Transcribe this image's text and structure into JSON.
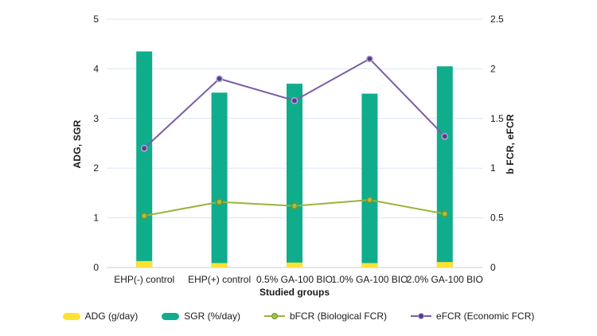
{
  "chart_data": {
    "type": "combo",
    "title": "",
    "categories": [
      "EHP(-) control",
      "EHP(+) control",
      "0.5% GA-100 BIO",
      "1.0% GA-100 BIO",
      "2.0% GA-100 BIO"
    ],
    "series": [
      {
        "name": "ADG (g/day)",
        "type": "bar",
        "axis": "left",
        "color": "#fde233",
        "values": [
          0.13,
          0.09,
          0.1,
          0.09,
          0.11
        ]
      },
      {
        "name": "SGR (%/day)",
        "type": "bar",
        "axis": "left",
        "color": "#10ad8d",
        "values": [
          4.35,
          3.52,
          3.7,
          3.5,
          4.05
        ]
      },
      {
        "name": "bFCR (Biological FCR)",
        "type": "line",
        "axis": "right",
        "color": "#9ab43c",
        "marker_fill": "#a6bf42",
        "marker_stroke": "#71902a",
        "values": [
          0.52,
          0.66,
          0.62,
          0.68,
          0.54
        ]
      },
      {
        "name": "eFCR (Economic FCR)",
        "type": "line",
        "axis": "right",
        "color": "#7a5da6",
        "marker_fill": "#533d8c",
        "marker_stroke": "#b3a6cf",
        "values": [
          1.2,
          1.9,
          1.68,
          2.1,
          1.32
        ]
      }
    ],
    "xlabel": "Studied groups",
    "ylabel_left": "ADG, SGR",
    "ylabel_right": "b FCR, eFCR",
    "ylim_left": [
      0,
      5
    ],
    "ylim_right": [
      0,
      2.5
    ],
    "yticks_left": [
      0,
      1,
      2,
      3,
      4,
      5
    ],
    "yticks_right": [
      0,
      0.5,
      1,
      1.5,
      2,
      2.5
    ],
    "grid": true,
    "gridline_color": "#dce6f2",
    "axisline_color": "#c3ccd6",
    "text_color": "#1a1a1a",
    "legend_position": "bottom"
  }
}
